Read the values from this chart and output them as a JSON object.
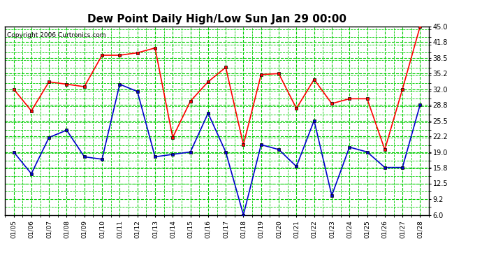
{
  "title": "Dew Point Daily High/Low Sun Jan 29 00:00",
  "copyright": "Copyright 2006 Curtronics.com",
  "x_labels": [
    "01/05",
    "01/06",
    "01/07",
    "01/08",
    "01/09",
    "01/10",
    "01/11",
    "01/12",
    "01/13",
    "01/14",
    "01/15",
    "01/16",
    "01/17",
    "01/18",
    "01/19",
    "01/20",
    "01/21",
    "01/22",
    "01/23",
    "01/24",
    "01/25",
    "01/26",
    "01/27",
    "01/28"
  ],
  "high_values": [
    32.0,
    27.5,
    33.5,
    33.0,
    32.5,
    39.0,
    39.0,
    39.5,
    40.5,
    22.0,
    29.5,
    33.5,
    36.5,
    20.5,
    35.0,
    35.2,
    28.0,
    34.0,
    29.0,
    30.0,
    30.0,
    19.5,
    32.0,
    45.0
  ],
  "low_values": [
    19.0,
    14.5,
    22.0,
    23.5,
    18.0,
    17.5,
    33.0,
    31.5,
    18.0,
    18.5,
    19.0,
    27.0,
    19.0,
    6.0,
    20.5,
    19.5,
    16.0,
    25.5,
    10.0,
    20.0,
    19.0,
    15.8,
    15.8,
    28.8
  ],
  "high_color": "#ff0000",
  "low_color": "#0000cc",
  "bg_color": "#ffffff",
  "plot_bg_color": "#ffffff",
  "grid_major_color": "#00cc00",
  "grid_minor_color": "#00cc00",
  "title_fontsize": 11,
  "ylim": [
    6.0,
    45.0
  ],
  "yticks": [
    6.0,
    9.2,
    12.5,
    15.8,
    19.0,
    22.2,
    25.5,
    28.8,
    32.0,
    35.2,
    38.5,
    41.8,
    45.0
  ],
  "figsize": [
    6.9,
    3.75
  ],
  "dpi": 100
}
